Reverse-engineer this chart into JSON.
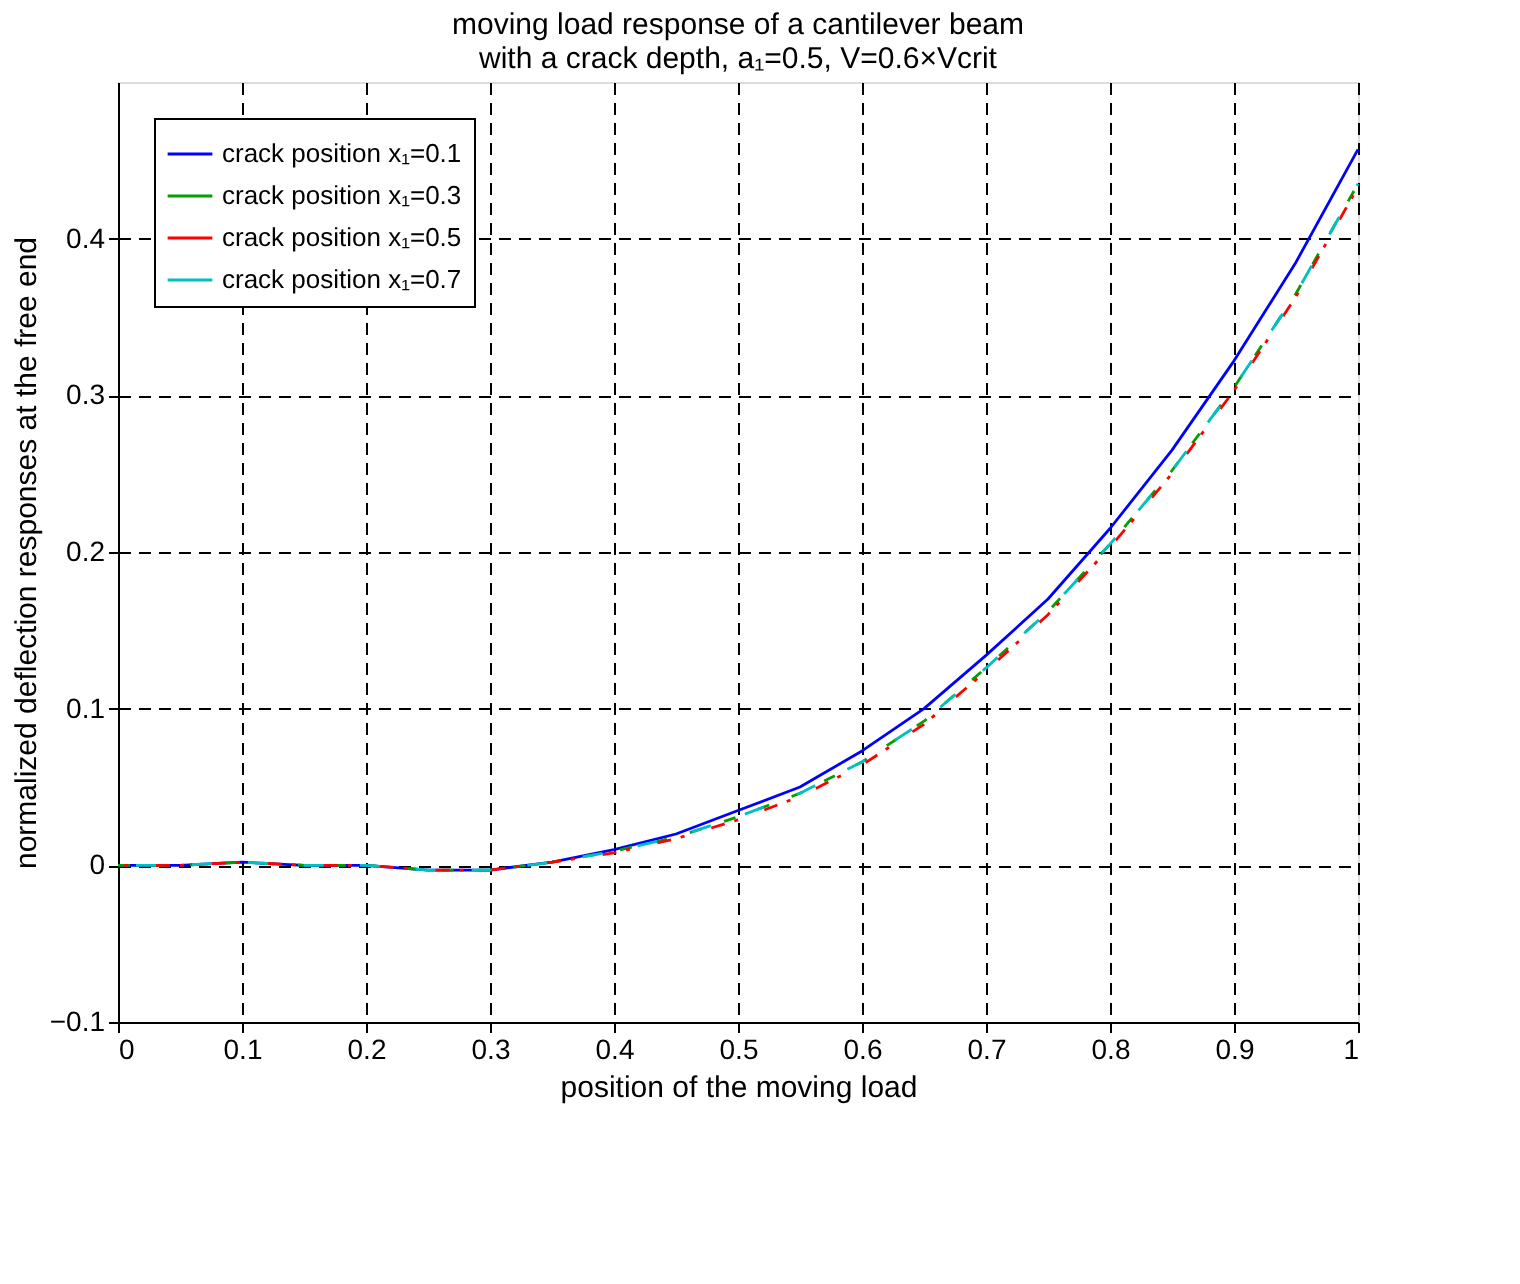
{
  "chart_data": {
    "type": "line",
    "title": [
      "moving load response of a cantilever beam",
      "with a crack depth, a₁=0.5, V=0.6×Vcrit"
    ],
    "xlabel": "position of the moving load",
    "ylabel": "normalized deflection responses at the free end",
    "x": [
      0,
      0.05,
      0.1,
      0.15,
      0.2,
      0.25,
      0.3,
      0.35,
      0.4,
      0.45,
      0.5,
      0.55,
      0.6,
      0.65,
      0.7,
      0.75,
      0.8,
      0.85,
      0.9,
      0.95,
      1
    ],
    "series": [
      {
        "name": "crack position x₁=0.1",
        "color": "#0000ff",
        "line_style": "solid",
        "values": [
          0,
          0,
          0.002,
          0,
          0,
          -0.003,
          -0.003,
          0.002,
          0.01,
          0.02,
          0.035,
          0.05,
          0.073,
          0.1,
          0.134,
          0.17,
          0.215,
          0.265,
          0.322,
          0.385,
          0.457
        ]
      },
      {
        "name": "crack position x₁=0.3",
        "color": "#00a000",
        "line_style": "dashed",
        "values": [
          0,
          0,
          0.002,
          0,
          0,
          -0.003,
          -0.003,
          0.002,
          0.009,
          0.018,
          0.031,
          0.046,
          0.066,
          0.092,
          0.126,
          0.162,
          0.205,
          0.252,
          0.305,
          0.365,
          0.435
        ]
      },
      {
        "name": "crack position x₁=0.5",
        "color": "#ff0000",
        "line_style": "dashdot",
        "values": [
          0,
          0,
          0.002,
          0,
          0,
          -0.003,
          -0.003,
          0.002,
          0.008,
          0.017,
          0.029,
          0.044,
          0.064,
          0.09,
          0.124,
          0.16,
          0.203,
          0.25,
          0.303,
          0.363,
          0.433
        ]
      },
      {
        "name": "crack position x₁=0.7",
        "color": "#00c0c0",
        "line_style": "longdash",
        "values": [
          0,
          0,
          0.002,
          0,
          0,
          -0.003,
          -0.003,
          0.002,
          0.009,
          0.018,
          0.031,
          0.046,
          0.066,
          0.092,
          0.126,
          0.162,
          0.205,
          0.252,
          0.305,
          0.365,
          0.435
        ]
      }
    ],
    "xlim": [
      0,
      1
    ],
    "xticks": [
      0,
      0.1,
      0.2,
      0.3,
      0.4,
      0.5,
      0.6,
      0.7,
      0.8,
      0.9,
      1
    ],
    "ylim": [
      -0.1,
      0.5
    ],
    "yticks": [
      -0.1,
      0,
      0.1,
      0.2,
      0.3,
      0.4
    ],
    "grid": true,
    "legend": "top left"
  }
}
